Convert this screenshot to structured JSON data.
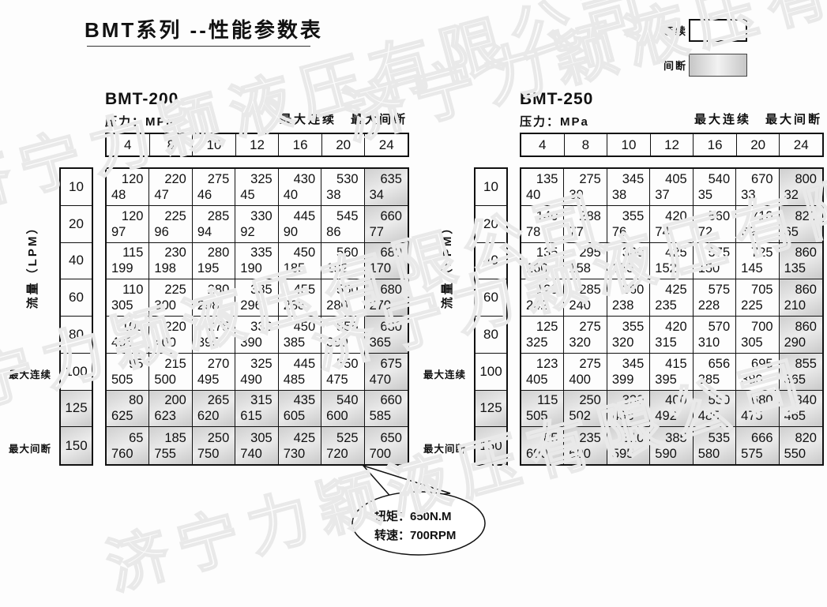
{
  "page": {
    "title": "BMT系列 --性能参数表",
    "watermark_text": "济宁力颖液压有限公司"
  },
  "legend": {
    "continuous_label": "连续",
    "intermittent_label": "间断",
    "continuous_color": "#ffffff",
    "intermittent_color": "#d2d2d2"
  },
  "shared": {
    "pressure_label": "压力：MPa",
    "max_continuous_label": "最大连续",
    "max_intermittent_label": "最大间断",
    "flow_axis_label": "流量（LPM）",
    "pressures": [
      "4",
      "8",
      "10",
      "12",
      "16",
      "20",
      "24"
    ],
    "flows": [
      "10",
      "20",
      "40",
      "60",
      "80",
      "100",
      "125",
      "150"
    ],
    "intermittent_pressures": [
      "24"
    ],
    "intermittent_flows": [
      "125",
      "150"
    ]
  },
  "tables": [
    {
      "name": "BMT-200",
      "rows": [
        [
          [
            "120",
            "48"
          ],
          [
            "220",
            "47"
          ],
          [
            "275",
            "46"
          ],
          [
            "325",
            "45"
          ],
          [
            "430",
            "40"
          ],
          [
            "530",
            "38"
          ],
          [
            "635",
            "34"
          ]
        ],
        [
          [
            "120",
            "97"
          ],
          [
            "225",
            "96"
          ],
          [
            "285",
            "94"
          ],
          [
            "330",
            "92"
          ],
          [
            "445",
            "90"
          ],
          [
            "545",
            "86"
          ],
          [
            "660",
            "77"
          ]
        ],
        [
          [
            "115",
            "199"
          ],
          [
            "230",
            "198"
          ],
          [
            "280",
            "195"
          ],
          [
            "335",
            "190"
          ],
          [
            "450",
            "185"
          ],
          [
            "560",
            "182"
          ],
          [
            "680",
            "170"
          ]
        ],
        [
          [
            "110",
            "305"
          ],
          [
            "225",
            "300"
          ],
          [
            "280",
            "298"
          ],
          [
            "335",
            "296"
          ],
          [
            "455",
            "288"
          ],
          [
            "560",
            "280"
          ],
          [
            "680",
            "270"
          ]
        ],
        [
          [
            "105",
            "405"
          ],
          [
            "220",
            "400"
          ],
          [
            "275",
            "395"
          ],
          [
            "333",
            "390"
          ],
          [
            "450",
            "385"
          ],
          [
            "555",
            "380"
          ],
          [
            "680",
            "365"
          ]
        ],
        [
          [
            "95",
            "505"
          ],
          [
            "215",
            "500"
          ],
          [
            "270",
            "495"
          ],
          [
            "325",
            "490"
          ],
          [
            "445",
            "485"
          ],
          [
            "550",
            "475"
          ],
          [
            "675",
            "470"
          ]
        ],
        [
          [
            "80",
            "625"
          ],
          [
            "200",
            "623"
          ],
          [
            "265",
            "620"
          ],
          [
            "315",
            "615"
          ],
          [
            "435",
            "605"
          ],
          [
            "540",
            "600"
          ],
          [
            "660",
            "585"
          ]
        ],
        [
          [
            "65",
            "760"
          ],
          [
            "185",
            "755"
          ],
          [
            "250",
            "750"
          ],
          [
            "305",
            "740"
          ],
          [
            "425",
            "730"
          ],
          [
            "525",
            "720"
          ],
          [
            "650",
            "700"
          ]
        ]
      ]
    },
    {
      "name": "BMT-250",
      "rows": [
        [
          [
            "135",
            "40"
          ],
          [
            "275",
            "39"
          ],
          [
            "345",
            "38"
          ],
          [
            "405",
            "37"
          ],
          [
            "540",
            "35"
          ],
          [
            "670",
            "33"
          ],
          [
            "800",
            "32"
          ]
        ],
        [
          [
            "140",
            "78"
          ],
          [
            "288",
            "77"
          ],
          [
            "355",
            "76"
          ],
          [
            "420",
            "74"
          ],
          [
            "560",
            "72"
          ],
          [
            "710",
            "69"
          ],
          [
            "820",
            "65"
          ]
        ],
        [
          [
            "135",
            "160"
          ],
          [
            "295",
            "158"
          ],
          [
            "360",
            "155"
          ],
          [
            "425",
            "152"
          ],
          [
            "575",
            "150"
          ],
          [
            "725",
            "145"
          ],
          [
            "860",
            "135"
          ]
        ],
        [
          [
            "128",
            "242"
          ],
          [
            "285",
            "240"
          ],
          [
            "360",
            "238"
          ],
          [
            "425",
            "235"
          ],
          [
            "575",
            "228"
          ],
          [
            "705",
            "225"
          ],
          [
            "860",
            "210"
          ]
        ],
        [
          [
            "125",
            "325"
          ],
          [
            "275",
            "320"
          ],
          [
            "355",
            "320"
          ],
          [
            "420",
            "315"
          ],
          [
            "570",
            "310"
          ],
          [
            "700",
            "305"
          ],
          [
            "860",
            "290"
          ]
        ],
        [
          [
            "123",
            "405"
          ],
          [
            "275",
            "400"
          ],
          [
            "345",
            "399"
          ],
          [
            "415",
            "395"
          ],
          [
            "656",
            "385"
          ],
          [
            "695",
            "380"
          ],
          [
            "855",
            "365"
          ]
        ],
        [
          [
            "115",
            "505"
          ],
          [
            "250",
            "502"
          ],
          [
            "330",
            "498"
          ],
          [
            "400",
            "492"
          ],
          [
            "550",
            "485"
          ],
          [
            "680",
            "475"
          ],
          [
            "840",
            "465"
          ]
        ],
        [
          [
            "85",
            "600"
          ],
          [
            "235",
            "600"
          ],
          [
            "310",
            "595"
          ],
          [
            "385",
            "590"
          ],
          [
            "535",
            "580"
          ],
          [
            "666",
            "575"
          ],
          [
            "820",
            "550"
          ]
        ]
      ]
    }
  ],
  "callout": {
    "torque_line": "扭矩：650N.M",
    "speed_line": "转速：700RPM"
  }
}
